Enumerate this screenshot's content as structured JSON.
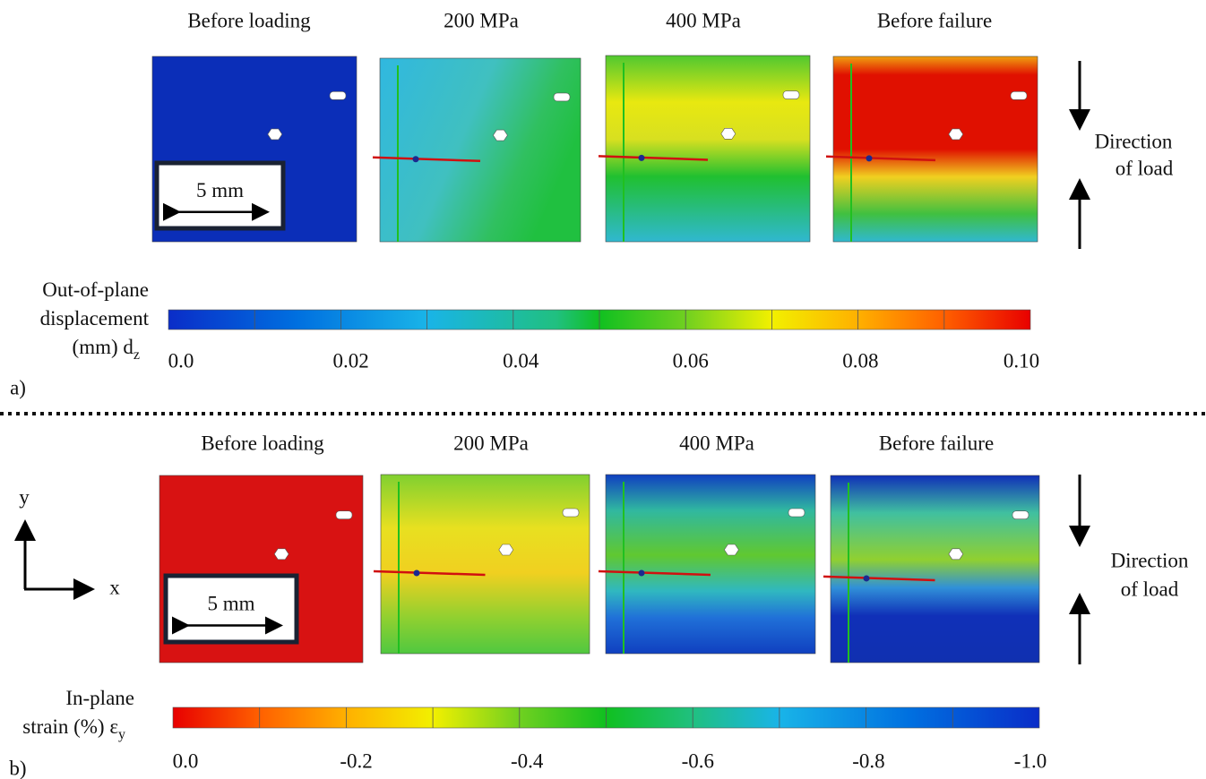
{
  "panel_a": {
    "label": "a)",
    "stages": [
      "Before loading",
      "200 MPa",
      "400 MPa",
      "Before failure"
    ],
    "scale_bar": "5 mm",
    "load_direction": [
      "Direction",
      "of load"
    ],
    "colorbar_title": [
      "Out-of-plane",
      "displacement",
      "(mm) d"
    ],
    "colorbar_subscript": "z",
    "colorbar_ticks": [
      "0.0",
      "0.02",
      "0.04",
      "0.06",
      "0.08",
      "0.10"
    ]
  },
  "panel_b": {
    "label": "b)",
    "stages": [
      "Before loading",
      "200 MPa",
      "400 MPa",
      "Before failure"
    ],
    "scale_bar": "5 mm",
    "load_direction": [
      "Direction",
      "of load"
    ],
    "colorbar_title": [
      "In-plane",
      "strain (%) ε"
    ],
    "colorbar_subscript": "y",
    "colorbar_ticks": [
      "0.0",
      "-0.2",
      "-0.4",
      "-0.6",
      "-0.8",
      "-1.0"
    ],
    "axes": {
      "x": "x",
      "y": "y"
    }
  }
}
